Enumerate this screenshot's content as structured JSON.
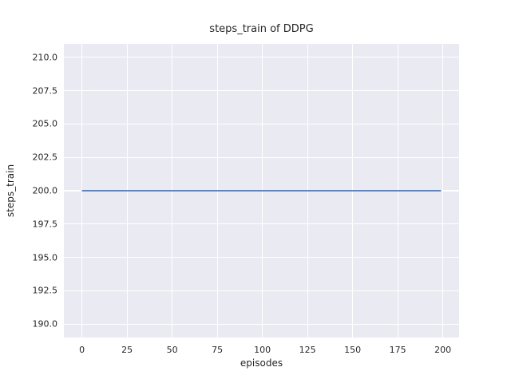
{
  "chart_data": {
    "type": "line",
    "title": "steps_train of DDPG",
    "xlabel": "episodes",
    "ylabel": "steps_train",
    "xlim": [
      -10,
      209
    ],
    "ylim": [
      189,
      211
    ],
    "grid": true,
    "legend": "none",
    "x_ticks": {
      "values": [
        0,
        25,
        50,
        75,
        100,
        125,
        150,
        175,
        200
      ],
      "labels": [
        "0",
        "25",
        "50",
        "75",
        "100",
        "125",
        "150",
        "175",
        "200"
      ]
    },
    "y_ticks": {
      "values": [
        190.0,
        192.5,
        195.0,
        197.5,
        200.0,
        202.5,
        205.0,
        207.5,
        210.0
      ],
      "labels": [
        "190.0",
        "192.5",
        "195.0",
        "197.5",
        "200.0",
        "202.5",
        "205.0",
        "207.5",
        "210.0"
      ]
    },
    "series": [
      {
        "name": "steps_train",
        "x": [
          0,
          199
        ],
        "y": [
          200,
          200
        ]
      }
    ],
    "colors": {
      "axes_background": "#eaeaf2",
      "grid_color": "#ffffff",
      "line_color": "#4c72b0",
      "text_color": "#262626",
      "figure_background": "#ffffff"
    }
  }
}
